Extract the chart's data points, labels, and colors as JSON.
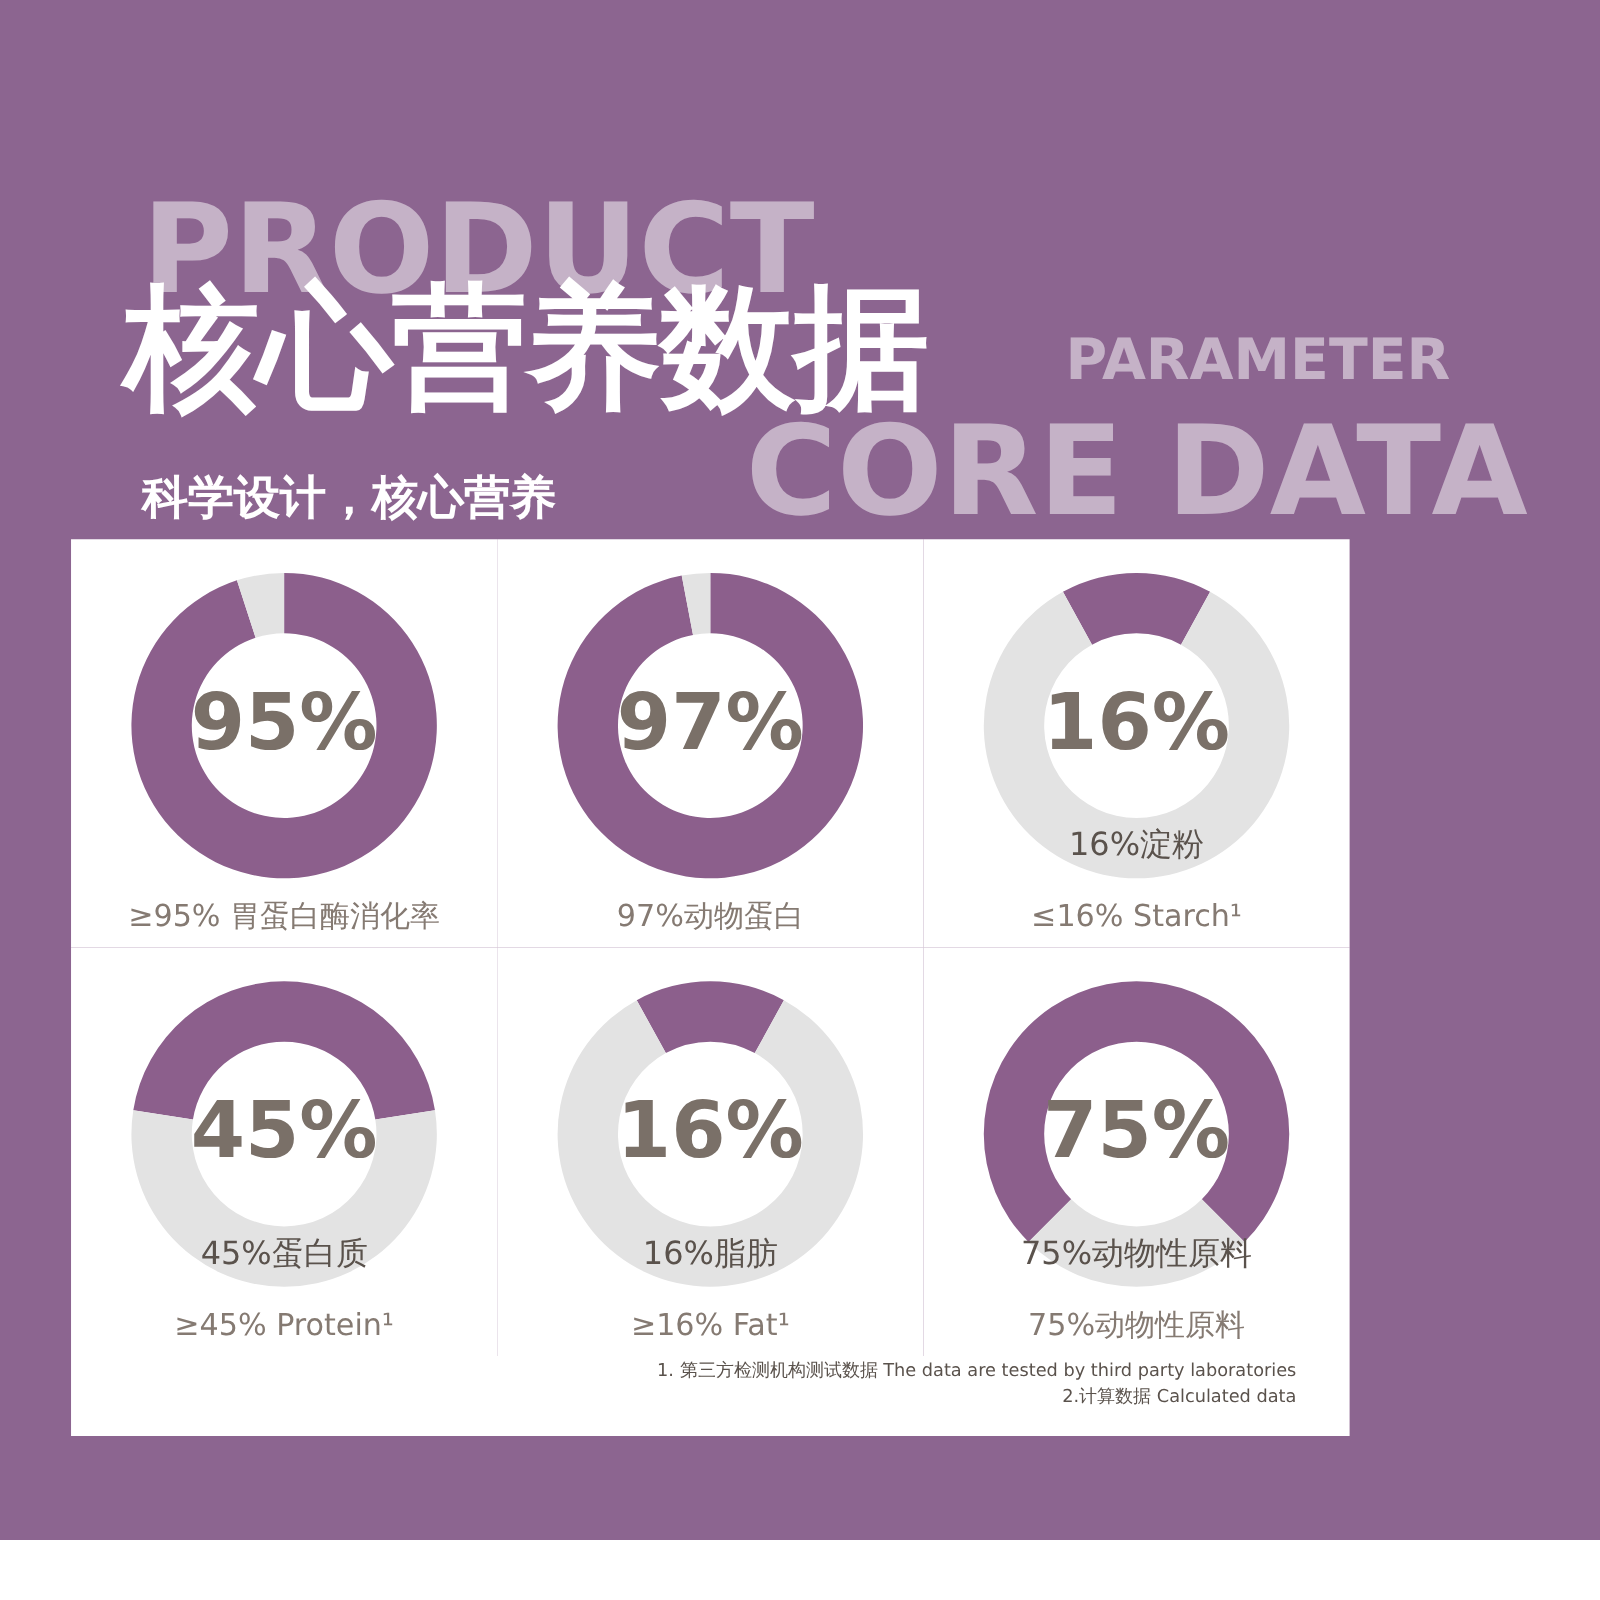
{
  "chart_data": [
    {
      "type": "other",
      "title": "核心营养数据",
      "subtitle": "科学设计，核心营养",
      "annotations": [
        "PRODUCT",
        "PARAMETER",
        "CORE DATA"
      ]
    },
    {
      "type": "donut",
      "categories": [
        null,
        null
      ],
      "values": [
        95,
        5
      ],
      "colors": [
        "#8c5f8c",
        "#e3e3e3"
      ],
      "value_labels": [
        "95%",
        null
      ],
      "xlabel": "≥95% 胃蛋白酶消化率"
    },
    {
      "type": "donut",
      "categories": [
        null,
        null
      ],
      "values": [
        97,
        3
      ],
      "colors": [
        "#8c5f8c",
        "#e3e3e3"
      ],
      "value_labels": [
        "97%",
        null
      ],
      "xlabel": "97%动物蛋白"
    },
    {
      "type": "donut",
      "categories": [
        null,
        null
      ],
      "values": [
        16,
        84
      ],
      "colors": [
        "#8c5f8c",
        "#e3e3e3"
      ],
      "value_labels": [
        "16%",
        null
      ],
      "xlabel": "≤16% Starch¹",
      "annotations": [
        "16%淀粉"
      ]
    },
    {
      "type": "donut",
      "categories": [
        null,
        null
      ],
      "values": [
        45,
        55
      ],
      "colors": [
        "#8c5f8c",
        "#e3e3e3"
      ],
      "value_labels": [
        "45%",
        null
      ],
      "xlabel": "≥45% Protein¹",
      "annotations": [
        "45%蛋白质"
      ]
    },
    {
      "type": "donut",
      "categories": [
        null,
        null
      ],
      "values": [
        16,
        84
      ],
      "colors": [
        "#8c5f8c",
        "#e3e3e3"
      ],
      "value_labels": [
        "16%",
        null
      ],
      "xlabel": "≥16% Fat¹",
      "annotations": [
        "16%脂肪"
      ]
    },
    {
      "type": "donut",
      "categories": [
        null,
        null
      ],
      "values": [
        75,
        25
      ],
      "colors": [
        "#8c5f8c",
        "#e3e3e3"
      ],
      "value_labels": [
        "75%",
        null
      ],
      "xlabel": "75%动物性原料",
      "annotations": [
        "75%动物性原料",
        "1. 第三方检测机构测试数据  The data are tested by third party laboratories",
        "2.计算数据  Calculated data"
      ]
    }
  ]
}
